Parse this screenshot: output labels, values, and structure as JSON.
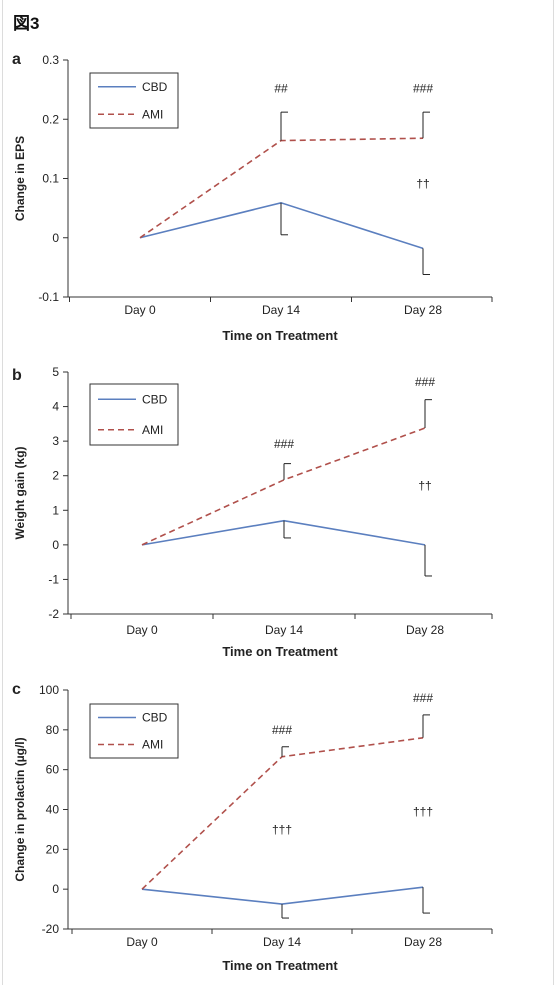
{
  "figure_title": "図3",
  "colors": {
    "CBD": "#5b7fbf",
    "AMI": "#b0504b",
    "axis": "#333333"
  },
  "chart_data": [
    {
      "panel_label": "a",
      "type": "line",
      "xlabel": "Time on Treatment",
      "ylabel": "Change in EPS",
      "categories": [
        "Day 0",
        "Day 14",
        "Day 28"
      ],
      "ylim": [
        -0.1,
        0.3
      ],
      "yticks": [
        "-0.1",
        "0",
        "0.1",
        "0.2",
        "0.3"
      ],
      "yticks_values": [
        -0.1,
        0,
        0.1,
        0.2,
        0.3
      ],
      "legend": "top-left",
      "grid": false,
      "series": [
        {
          "name": "CBD",
          "style": "solid",
          "values": [
            0,
            0.059,
            -0.018
          ],
          "error_low": [
            null,
            0.005,
            -0.062
          ],
          "error_high": [
            null,
            null,
            null
          ]
        },
        {
          "name": "AMI",
          "style": "dashed",
          "values": [
            0,
            0.164,
            0.168
          ],
          "error_low": [
            null,
            null,
            null
          ],
          "error_high": [
            null,
            0.212,
            0.212
          ]
        }
      ],
      "annotations": [
        {
          "text": "##",
          "x": 1,
          "y": 0.245
        },
        {
          "text": "###",
          "x": 2,
          "y": 0.245
        },
        {
          "text": "††",
          "x": 2,
          "y": 0.085
        }
      ]
    },
    {
      "panel_label": "b",
      "type": "line",
      "xlabel": "Time on Treatment",
      "ylabel": "Weight gain (kg)",
      "categories": [
        "Day 0",
        "Day 14",
        "Day 28"
      ],
      "ylim": [
        -2,
        5
      ],
      "yticks": [
        "-2",
        "-1",
        "0",
        "1",
        "2",
        "3",
        "4",
        "5"
      ],
      "yticks_values": [
        -2,
        -1,
        0,
        1,
        2,
        3,
        4,
        5
      ],
      "legend": "top-left",
      "grid": false,
      "series": [
        {
          "name": "CBD",
          "style": "solid",
          "values": [
            0,
            0.7,
            0.0
          ],
          "error_low": [
            null,
            0.2,
            -0.9
          ],
          "error_high": [
            null,
            null,
            null
          ]
        },
        {
          "name": "AMI",
          "style": "dashed",
          "values": [
            0,
            1.88,
            3.38
          ],
          "error_low": [
            null,
            null,
            null
          ],
          "error_high": [
            null,
            2.35,
            4.2
          ]
        }
      ],
      "annotations": [
        {
          "text": "###",
          "x": 1,
          "y": 2.8
        },
        {
          "text": "###",
          "x": 2,
          "y": 4.6
        },
        {
          "text": "††",
          "x": 2,
          "y": 1.6
        }
      ]
    },
    {
      "panel_label": "c",
      "type": "line",
      "xlabel": "Time on Treatment",
      "ylabel": "Change in prolactin (µg/l)",
      "categories": [
        "Day 0",
        "Day 14",
        "Day 28"
      ],
      "ylim": [
        -20,
        100
      ],
      "yticks": [
        "-20",
        "0",
        "20",
        "40",
        "60",
        "80",
        "100"
      ],
      "yticks_values": [
        -20,
        0,
        20,
        40,
        60,
        80,
        100
      ],
      "legend": "top-left",
      "grid": false,
      "series": [
        {
          "name": "CBD",
          "style": "solid",
          "values": [
            0,
            -7.5,
            1.0
          ],
          "error_low": [
            null,
            -14.5,
            -12.0
          ],
          "error_high": [
            null,
            null,
            null
          ]
        },
        {
          "name": "AMI",
          "style": "dashed",
          "values": [
            0,
            66.5,
            76.0
          ],
          "error_low": [
            null,
            null,
            null
          ],
          "error_high": [
            null,
            71.5,
            87.5
          ]
        }
      ],
      "annotations": [
        {
          "text": "###",
          "x": 1,
          "y": 78
        },
        {
          "text": "###",
          "x": 2,
          "y": 94
        },
        {
          "text": "†††",
          "x": 1,
          "y": 28
        },
        {
          "text": "†††",
          "x": 2,
          "y": 37
        }
      ]
    }
  ]
}
